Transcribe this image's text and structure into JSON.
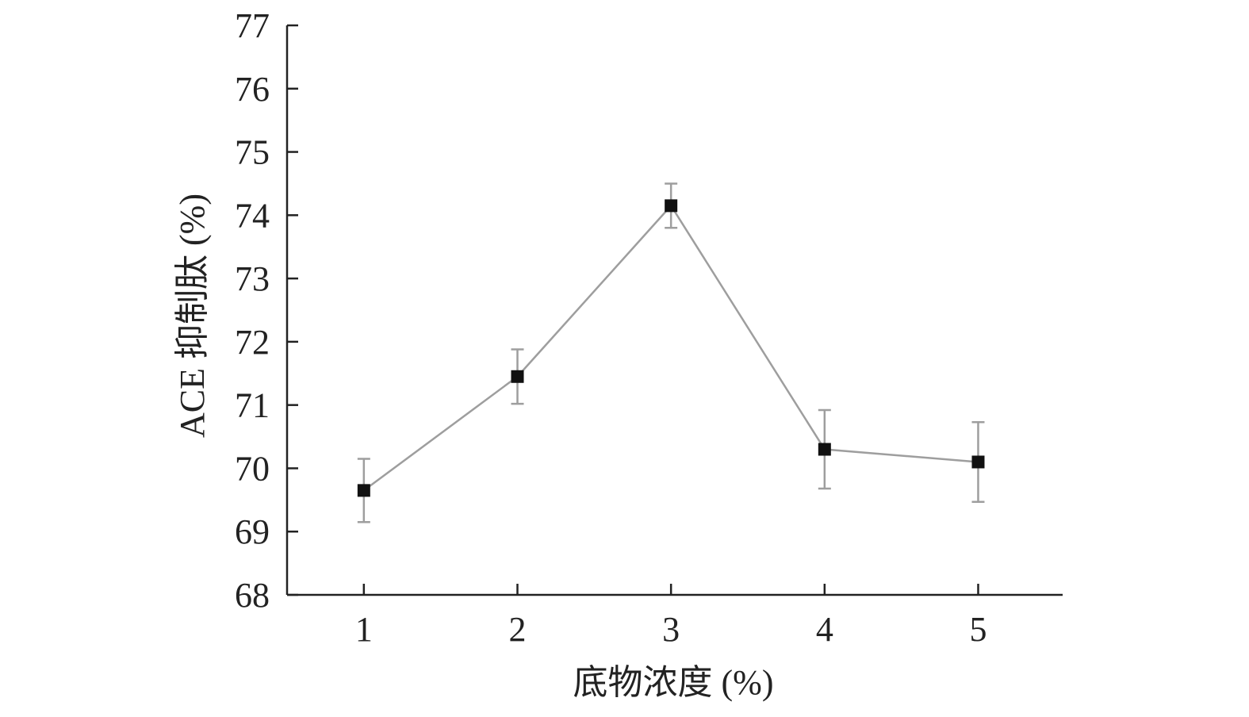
{
  "chart_data": {
    "type": "line",
    "title": "",
    "xlabel": "底物浓度 (%)",
    "ylabel": "ACE 抑制肽 (%)",
    "categories": [
      "1",
      "2",
      "3",
      "4",
      "5"
    ],
    "x": [
      1,
      2,
      3,
      4,
      5
    ],
    "xlim": [
      0.5,
      5.55
    ],
    "ylim": [
      68,
      77
    ],
    "yticks": [
      68,
      69,
      70,
      71,
      72,
      73,
      74,
      75,
      76,
      77
    ],
    "series": [
      {
        "values": [
          69.65,
          71.45,
          74.15,
          70.3,
          70.1
        ],
        "errors": [
          0.5,
          0.43,
          0.35,
          0.62,
          0.63
        ],
        "line_color": "#9e9e9e",
        "marker": "square",
        "marker_color": "#111111"
      }
    ],
    "grid": false,
    "legend": "none"
  }
}
